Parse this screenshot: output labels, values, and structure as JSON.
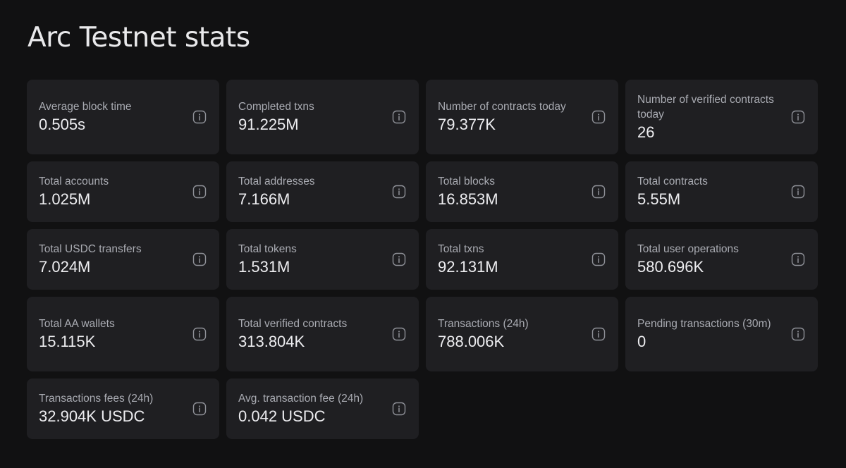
{
  "page": {
    "title": "Arc Testnet stats"
  },
  "stats": [
    {
      "label": "Average block time",
      "value": "0.505s"
    },
    {
      "label": "Completed txns",
      "value": "91.225M"
    },
    {
      "label": "Number of contracts today",
      "value": "79.377K"
    },
    {
      "label": "Number of verified contracts today",
      "value": "26"
    },
    {
      "label": "Total accounts",
      "value": "1.025M"
    },
    {
      "label": "Total addresses",
      "value": "7.166M"
    },
    {
      "label": "Total blocks",
      "value": "16.853M"
    },
    {
      "label": "Total contracts",
      "value": "5.55M"
    },
    {
      "label": "Total USDC transfers",
      "value": "7.024M"
    },
    {
      "label": "Total tokens",
      "value": "1.531M"
    },
    {
      "label": "Total txns",
      "value": "92.131M"
    },
    {
      "label": "Total user operations",
      "value": "580.696K"
    },
    {
      "label": "Total AA wallets",
      "value": "15.115K"
    },
    {
      "label": "Total verified contracts",
      "value": "313.804K"
    },
    {
      "label": "Transactions (24h)",
      "value": "788.006K"
    },
    {
      "label": "Pending transactions (30m)",
      "value": "0"
    },
    {
      "label": "Transactions fees (24h)",
      "value": "32.904K USDC"
    },
    {
      "label": "Avg. transaction fee (24h)",
      "value": "0.042 USDC"
    }
  ],
  "icons": {
    "info": "info-icon"
  },
  "colors": {
    "background": "#111112",
    "card": "#1f1f22",
    "label": "#a9abb2",
    "value": "#ededf0",
    "icon": "#8f9198"
  }
}
